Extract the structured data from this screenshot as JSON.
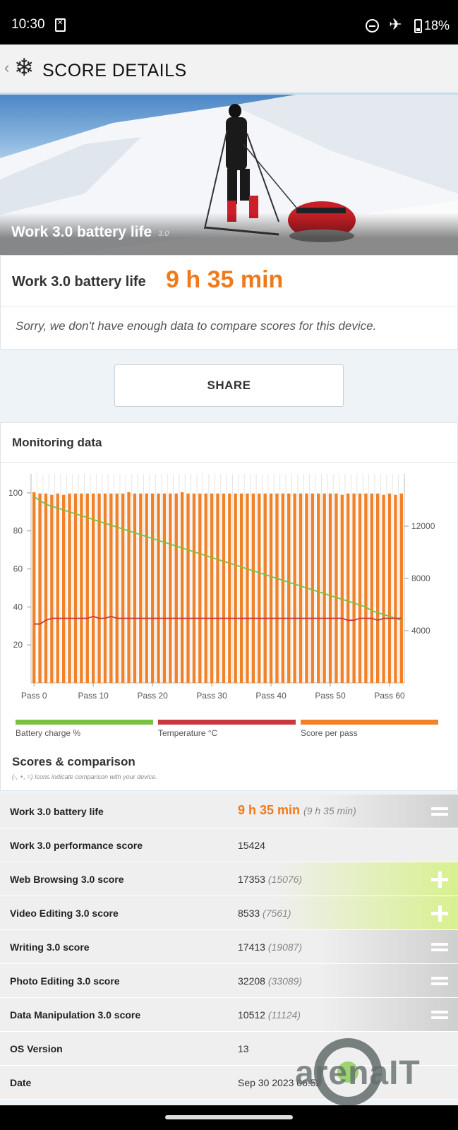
{
  "status_bar": {
    "time": "10:30",
    "battery": "18%"
  },
  "app_bar": {
    "back": "‹",
    "title": "SCORE DETAILS"
  },
  "hero": {
    "label": "Work 3.0 battery life",
    "version": "3.0"
  },
  "result": {
    "label": "Work 3.0 battery life",
    "value": "9 h 35 min",
    "message": "Sorry, we don't have enough data to compare scores for this device."
  },
  "share_label": "SHARE",
  "monitoring": {
    "title": "Monitoring data"
  },
  "chart_data": {
    "type": "bar",
    "x_tick_labels": [
      "Pass 0",
      "Pass 10",
      "Pass 20",
      "Pass 30",
      "Pass 40",
      "Pass 50",
      "Pass 60"
    ],
    "left_ticks": [
      20,
      40,
      60,
      80,
      100
    ],
    "right_ticks": [
      4000,
      8000,
      12000
    ],
    "left_ylim": [
      0,
      110
    ],
    "right_ylim": [
      0,
      16000
    ],
    "passes": 63,
    "score_per_pass": [
      14600,
      14500,
      14500,
      14400,
      14500,
      14400,
      14500,
      14500,
      14500,
      14500,
      14500,
      14500,
      14500,
      14500,
      14500,
      14500,
      14600,
      14500,
      14500,
      14500,
      14500,
      14500,
      14500,
      14500,
      14500,
      14600,
      14500,
      14500,
      14500,
      14500,
      14500,
      14500,
      14500,
      14500,
      14500,
      14500,
      14500,
      14500,
      14500,
      14500,
      14500,
      14500,
      14500,
      14500,
      14500,
      14500,
      14500,
      14500,
      14500,
      14500,
      14500,
      14500,
      14400,
      14500,
      14500,
      14500,
      14500,
      14500,
      14500,
      14400,
      14500,
      14400,
      14500
    ],
    "battery_charge": [
      98,
      96,
      94,
      93,
      92,
      91,
      90,
      89,
      88,
      87,
      86,
      85,
      84,
      83,
      82,
      81,
      80,
      79,
      78,
      77,
      76,
      75,
      74,
      73,
      72,
      71,
      70,
      69,
      68,
      67,
      66,
      65,
      64,
      63,
      62,
      61,
      60,
      59,
      58,
      57,
      56,
      55,
      54,
      53,
      52,
      51,
      50,
      49,
      48,
      47,
      46,
      45,
      44,
      43,
      42,
      41,
      40,
      38,
      37,
      36,
      35,
      34,
      33
    ],
    "temperature": [
      31,
      31,
      33,
      34,
      34,
      34,
      34,
      34,
      34,
      34,
      35,
      34,
      34,
      35,
      34,
      34,
      34,
      34,
      34,
      34,
      34,
      34,
      34,
      34,
      34,
      34,
      34,
      34,
      34,
      34,
      34,
      34,
      34,
      34,
      34,
      34,
      34,
      34,
      34,
      34,
      34,
      34,
      34,
      34,
      34,
      34,
      34,
      34,
      34,
      34,
      34,
      34,
      34,
      33,
      33,
      34,
      34,
      34,
      33,
      34,
      34,
      34,
      34
    ],
    "colors": {
      "battery": "#7ac142",
      "temperature": "#c8393f",
      "score": "#f0832a"
    },
    "series": [
      {
        "name": "Battery charge %"
      },
      {
        "name": "Temperature °C"
      },
      {
        "name": "Score per pass"
      }
    ]
  },
  "scores": {
    "title": "Scores & comparison",
    "subtitle": "(-, +, =) Icons indicate comparison with your device.",
    "rows": [
      {
        "name": "Work 3.0 battery life",
        "value": "9 h 35 min",
        "compare": "(9 h 35 min)",
        "icon": "equal-icon"
      },
      {
        "name": "Work 3.0 performance score",
        "value": "15424",
        "compare": "",
        "icon": ""
      },
      {
        "name": "Web Browsing 3.0 score",
        "value": "17353",
        "compare": "(15076)",
        "icon": "plus-icon"
      },
      {
        "name": "Video Editing 3.0 score",
        "value": "8533",
        "compare": "(7561)",
        "icon": "plus-icon"
      },
      {
        "name": "Writing 3.0 score",
        "value": "17413",
        "compare": "(19087)",
        "icon": "equal-icon"
      },
      {
        "name": "Photo Editing 3.0 score",
        "value": "32208",
        "compare": "(33089)",
        "icon": "equal-icon"
      },
      {
        "name": "Data Manipulation 3.0 score",
        "value": "10512",
        "compare": "(11124)",
        "icon": "equal-icon"
      },
      {
        "name": "OS Version",
        "value": "13",
        "compare": "",
        "icon": ""
      },
      {
        "name": "Date",
        "value": "Sep 30 2023 06:52",
        "compare": "",
        "icon": ""
      }
    ]
  },
  "watermark": "arenaIT"
}
